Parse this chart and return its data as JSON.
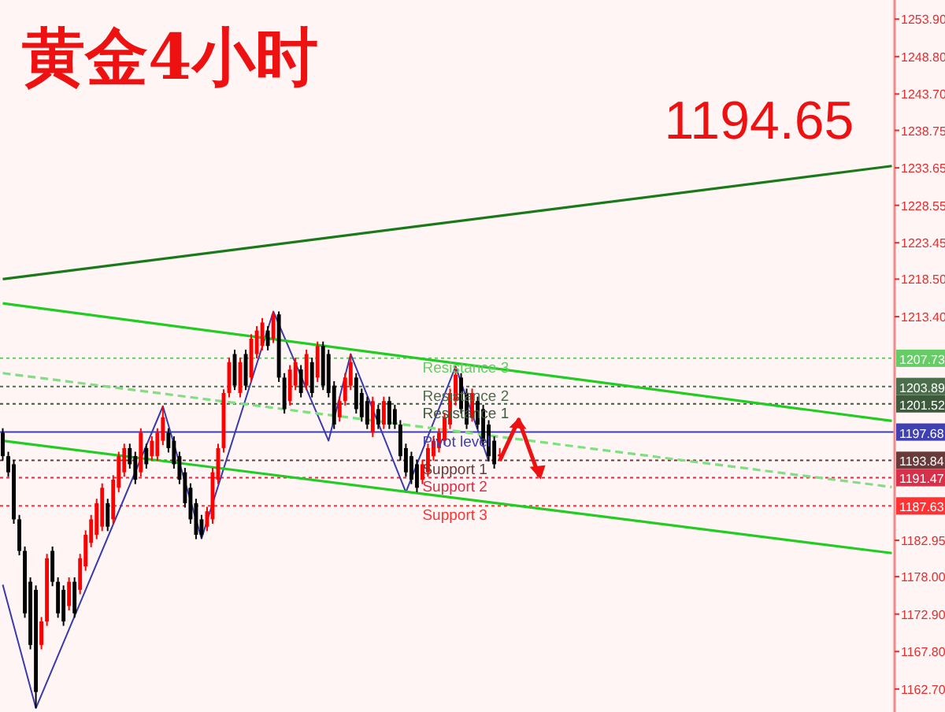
{
  "chart_data": {
    "type": "candlestick",
    "title": "黄金4小时",
    "annotations": [
      "1194.65"
    ],
    "colors": [
      "#000000",
      "#000000",
      "#000000",
      "#000000",
      "#000000",
      "#000000",
      "#000000",
      "#ff0000",
      "#ff0000",
      "#000000",
      "#000000",
      "#000000",
      "#ff0000",
      "#000000",
      "#ff0000",
      "#ff0000",
      "#ff0000",
      "#ff0000",
      "#ff0000",
      "#000000",
      "#ff0000",
      "#ff0000",
      "#ff0000",
      "#000000",
      "#000000",
      "#ff0000",
      "#000000",
      "#ff0000",
      "#ff0000",
      "#ff0000",
      "#000000",
      "#000000",
      "#000000",
      "#000000",
      "#000000",
      "#000000",
      "#000000",
      "#ff0000",
      "#ff0000",
      "#ff0000",
      "#ff0000",
      "#ff0000",
      "#000000",
      "#ff0000",
      "#000000",
      "#ff0000",
      "#ff0000",
      "#ff0000",
      "#000000",
      "#ff0000",
      "#000000",
      "#000000",
      "#ff0000",
      "#ff0000",
      "#000000",
      "#ff0000",
      "#000000",
      "#ff0000",
      "#000000",
      "#000000",
      "#000000",
      "#ff0000",
      "#ff0000",
      "#ff0000",
      "#000000",
      "#000000",
      "#000000",
      "#ff0000",
      "#000000",
      "#ff0000",
      "#000000",
      "#000000",
      "#000000",
      "#000000",
      "#000000",
      "#000000",
      "#ff0000",
      "#ff0000",
      "#ff0000",
      "#ff0000",
      "#ff0000",
      "#ff0000",
      "#ff0000",
      "#000000",
      "#000000",
      "#ff0000",
      "#000000",
      "#000000",
      "#000000",
      "#000000",
      "#ff0000",
      null,
      null,
      null,
      null,
      null,
      null,
      null,
      null,
      null,
      null,
      null,
      null,
      null,
      null,
      null,
      null,
      null,
      null,
      null,
      null,
      null,
      null,
      null,
      null,
      null,
      null,
      null,
      null,
      null,
      null,
      null,
      null,
      null,
      null,
      null,
      null,
      null,
      null,
      null,
      null,
      null,
      null,
      null,
      null,
      null,
      null,
      null,
      null,
      null,
      null,
      null,
      null,
      null,
      null,
      null,
      null,
      null,
      null,
      null,
      null,
      null,
      null,
      null,
      null,
      null,
      null,
      null,
      null,
      null,
      null,
      null
    ],
    "categories": [
      null,
      null,
      null,
      null,
      null,
      null,
      null,
      null,
      null,
      null,
      null,
      null,
      null,
      null,
      null,
      null,
      null,
      null,
      null,
      null,
      null,
      null,
      null,
      null,
      null,
      null,
      null,
      null,
      null,
      null,
      null,
      null,
      null,
      null,
      null,
      null,
      null,
      null,
      null,
      null,
      null,
      null,
      null,
      null,
      null,
      null,
      null,
      null,
      null,
      null,
      null,
      null,
      null,
      null,
      null,
      null,
      null,
      null,
      null,
      null,
      null,
      null,
      null,
      null,
      null,
      null,
      null,
      null,
      null,
      null,
      null,
      null,
      null,
      null,
      null,
      null,
      null,
      null,
      null,
      null,
      null,
      null,
      null,
      null,
      null,
      null,
      null,
      null,
      null,
      null,
      null,
      null,
      null,
      null,
      null,
      null,
      null,
      null,
      null,
      null,
      null,
      null,
      null,
      null,
      null,
      null,
      null,
      null,
      null,
      null,
      null,
      null,
      null,
      null,
      null,
      null,
      null,
      null,
      null,
      null,
      null,
      null,
      null,
      null,
      null,
      null,
      null,
      null,
      null,
      null,
      null,
      null,
      null,
      null,
      null,
      null,
      null,
      null,
      null,
      null,
      null,
      null,
      null,
      null,
      null,
      null,
      null,
      null,
      null,
      null,
      null,
      null,
      null,
      null,
      null,
      null,
      null,
      null,
      null,
      null,
      null,
      null
    ],
    "ohlc": [
      [
        1197.6,
        1198.2,
        1193.8,
        1194.4
      ],
      [
        1194.4,
        1195.0,
        1191.6,
        1192.2
      ],
      [
        1193.3,
        1193.9,
        1185.2,
        1185.8
      ],
      [
        1185.8,
        1186.4,
        1180.9,
        1181.5
      ],
      [
        1181.5,
        1182.1,
        1172.4,
        1173.0
      ],
      [
        1177.3,
        1177.9,
        1168.1,
        1168.7
      ],
      [
        1176.2,
        1176.8,
        1160.1,
        1162.3
      ],
      [
        1168.7,
        1172.5,
        1168.1,
        1171.9
      ],
      [
        1171.9,
        1181.1,
        1171.3,
        1180.5
      ],
      [
        1181.5,
        1182.1,
        1176.7,
        1177.3
      ],
      [
        1177.3,
        1177.9,
        1172.4,
        1173.0
      ],
      [
        1176.2,
        1176.8,
        1171.3,
        1171.9
      ],
      [
        1174.0,
        1177.9,
        1173.4,
        1177.3
      ],
      [
        1177.3,
        1177.9,
        1172.4,
        1173.0
      ],
      [
        1176.2,
        1181.1,
        1175.6,
        1180.5
      ],
      [
        1179.4,
        1184.3,
        1178.8,
        1183.7
      ],
      [
        1182.6,
        1186.4,
        1182.0,
        1185.8
      ],
      [
        1183.7,
        1188.6,
        1183.1,
        1188.0
      ],
      [
        1184.8,
        1190.7,
        1184.2,
        1190.1
      ],
      [
        1188.0,
        1188.6,
        1184.2,
        1184.8
      ],
      [
        1185.8,
        1191.8,
        1185.2,
        1191.2
      ],
      [
        1190.1,
        1195.0,
        1189.5,
        1194.4
      ],
      [
        1192.2,
        1196.1,
        1191.6,
        1195.5
      ],
      [
        1195.5,
        1196.1,
        1192.7,
        1193.3
      ],
      [
        1194.4,
        1195.0,
        1190.6,
        1191.2
      ],
      [
        1192.2,
        1198.2,
        1191.6,
        1197.6
      ],
      [
        1195.5,
        1196.1,
        1192.7,
        1193.3
      ],
      [
        1194.4,
        1197.1,
        1193.8,
        1196.5
      ],
      [
        1194.4,
        1198.2,
        1193.8,
        1197.6
      ],
      [
        1196.5,
        1201.2,
        1195.9,
        1199.7
      ],
      [
        1197.6,
        1198.2,
        1194.9,
        1195.5
      ],
      [
        1196.5,
        1197.1,
        1192.7,
        1193.3
      ],
      [
        1194.4,
        1195.0,
        1190.6,
        1191.2
      ],
      [
        1192.2,
        1192.8,
        1187.4,
        1188.0
      ],
      [
        1190.1,
        1190.7,
        1185.2,
        1185.8
      ],
      [
        1188.0,
        1188.6,
        1183.1,
        1183.7
      ],
      [
        1185.8,
        1186.4,
        1183.2,
        1183.7
      ],
      [
        1184.8,
        1187.5,
        1184.2,
        1186.9
      ],
      [
        1185.8,
        1192.8,
        1185.2,
        1192.2
      ],
      [
        1191.2,
        1196.1,
        1190.6,
        1195.5
      ],
      [
        1195.5,
        1203.5,
        1194.9,
        1203.0
      ],
      [
        1203.0,
        1207.8,
        1202.4,
        1207.2
      ],
      [
        1208.3,
        1208.9,
        1203.4,
        1204.0
      ],
      [
        1203.0,
        1207.8,
        1202.4,
        1207.2
      ],
      [
        1208.3,
        1208.9,
        1203.4,
        1204.0
      ],
      [
        1205.1,
        1211.0,
        1204.5,
        1210.4
      ],
      [
        1208.3,
        1212.1,
        1207.7,
        1211.5
      ],
      [
        1209.4,
        1213.2,
        1208.8,
        1212.6
      ],
      [
        1211.5,
        1212.1,
        1208.8,
        1209.4
      ],
      [
        1210.4,
        1214.1,
        1209.8,
        1213.7
      ],
      [
        1213.7,
        1214.1,
        1204.5,
        1205.1
      ],
      [
        1205.1,
        1205.7,
        1200.2,
        1200.8
      ],
      [
        1201.9,
        1206.8,
        1201.3,
        1206.2
      ],
      [
        1204.0,
        1207.8,
        1203.4,
        1207.2
      ],
      [
        1206.2,
        1206.8,
        1202.4,
        1203.0
      ],
      [
        1204.0,
        1208.9,
        1203.4,
        1208.3
      ],
      [
        1207.2,
        1207.8,
        1202.4,
        1203.0
      ],
      [
        1205.1,
        1210.0,
        1204.5,
        1209.4
      ],
      [
        1209.4,
        1210.0,
        1203.4,
        1204.0
      ],
      [
        1208.3,
        1208.9,
        1202.4,
        1203.0
      ],
      [
        1204.0,
        1204.6,
        1198.1,
        1198.7
      ],
      [
        1199.7,
        1202.5,
        1199.1,
        1201.9
      ],
      [
        1201.9,
        1205.7,
        1201.3,
        1205.1
      ],
      [
        1204.0,
        1208.3,
        1203.4,
        1207.2
      ],
      [
        1205.1,
        1205.7,
        1200.2,
        1200.8
      ],
      [
        1203.0,
        1203.6,
        1199.1,
        1199.7
      ],
      [
        1201.9,
        1202.5,
        1198.1,
        1198.7
      ],
      [
        1197.6,
        1202.5,
        1197.0,
        1201.9
      ],
      [
        1200.8,
        1201.4,
        1198.1,
        1198.7
      ],
      [
        1198.7,
        1202.5,
        1198.1,
        1201.9
      ],
      [
        1201.9,
        1202.5,
        1198.1,
        1198.7
      ],
      [
        1200.8,
        1201.4,
        1198.1,
        1198.7
      ],
      [
        1198.7,
        1199.3,
        1193.8,
        1194.4
      ],
      [
        1195.5,
        1196.1,
        1191.6,
        1192.2
      ],
      [
        1194.4,
        1195.0,
        1190.6,
        1191.2
      ],
      [
        1193.3,
        1193.9,
        1189.5,
        1190.1
      ],
      [
        1191.2,
        1193.9,
        1190.6,
        1193.3
      ],
      [
        1192.2,
        1196.1,
        1191.6,
        1195.5
      ],
      [
        1194.4,
        1197.1,
        1193.8,
        1196.5
      ],
      [
        1195.5,
        1198.2,
        1194.9,
        1197.6
      ],
      [
        1196.5,
        1200.3,
        1195.9,
        1199.7
      ],
      [
        1198.7,
        1203.6,
        1198.1,
        1203.0
      ],
      [
        1201.9,
        1206.6,
        1201.3,
        1205.5
      ],
      [
        1205.1,
        1205.7,
        1200.2,
        1200.8
      ],
      [
        1203.0,
        1203.6,
        1198.1,
        1198.7
      ],
      [
        1199.7,
        1203.6,
        1199.1,
        1203.0
      ],
      [
        1201.9,
        1202.5,
        1198.1,
        1198.7
      ],
      [
        1200.8,
        1201.4,
        1195.9,
        1196.5
      ],
      [
        1198.7,
        1199.3,
        1193.7,
        1194.4
      ],
      [
        1196.5,
        1197.1,
        1192.7,
        1193.3
      ],
      [
        1194.4,
        1195.5,
        1193.8,
        1194.65
      ],
      null,
      null,
      null,
      null,
      null,
      null,
      null,
      null,
      null,
      null,
      null,
      null,
      null,
      null,
      null,
      null,
      null,
      null,
      null,
      null,
      null,
      null,
      null,
      null,
      null,
      null,
      null,
      null,
      null,
      null,
      null,
      null,
      null,
      null,
      null,
      null,
      null,
      null,
      null,
      null,
      null,
      null,
      null,
      null,
      null,
      null,
      null,
      null,
      null,
      null,
      null,
      null,
      null,
      null,
      null,
      null,
      null,
      null,
      null,
      null,
      null,
      null,
      null,
      null,
      null,
      null,
      null,
      null,
      null,
      null,
      null
    ],
    "series": [
      {
        "type": "line",
        "color": "#3a3aaa",
        "values": [
          1176.9,
          null,
          null,
          null,
          null,
          null,
          1160.1,
          null,
          null,
          null,
          null,
          null,
          null,
          null,
          null,
          null,
          null,
          null,
          null,
          null,
          null,
          null,
          null,
          null,
          null,
          null,
          null,
          null,
          null,
          1201.2,
          null,
          null,
          null,
          null,
          null,
          null,
          1183.2,
          null,
          null,
          null,
          null,
          null,
          null,
          null,
          null,
          null,
          null,
          null,
          null,
          1214.1,
          null,
          null,
          null,
          null,
          null,
          null,
          null,
          null,
          null,
          1196.5,
          null,
          null,
          null,
          1208.3,
          null,
          null,
          null,
          null,
          null,
          null,
          null,
          null,
          null,
          1189.5,
          null,
          null,
          null,
          null,
          null,
          null,
          null,
          null,
          1206.6,
          null,
          null,
          null,
          null,
          null,
          1193.7,
          null,
          null,
          null,
          null,
          null,
          null,
          null,
          null,
          null,
          null,
          null,
          null,
          null,
          null,
          null,
          null,
          null,
          null,
          null,
          null,
          null,
          null,
          null,
          null,
          null,
          null,
          null,
          null,
          null,
          null,
          null,
          null,
          null,
          null,
          null,
          null,
          null,
          null,
          null,
          null,
          null,
          null,
          null,
          null,
          null,
          null,
          null,
          null,
          null,
          null,
          null,
          null,
          null,
          null,
          null,
          null,
          null,
          null,
          null,
          null,
          null,
          null,
          null,
          null,
          null,
          null,
          null,
          null,
          null,
          null,
          null,
          null,
          null
        ]
      },
      {
        "type": "line",
        "color": "#1a7a1a",
        "values": [
          1218.5,
          null,
          null,
          null,
          null,
          null,
          null,
          null,
          null,
          null,
          null,
          null,
          null,
          null,
          null,
          null,
          null,
          null,
          null,
          null,
          null,
          null,
          null,
          null,
          null,
          null,
          null,
          null,
          null,
          null,
          null,
          null,
          null,
          null,
          null,
          null,
          null,
          null,
          null,
          null,
          null,
          null,
          null,
          null,
          null,
          null,
          null,
          null,
          null,
          null,
          null,
          null,
          null,
          null,
          null,
          null,
          null,
          null,
          null,
          null,
          null,
          null,
          null,
          null,
          null,
          null,
          null,
          null,
          null,
          null,
          null,
          null,
          null,
          null,
          null,
          null,
          null,
          null,
          null,
          null,
          null,
          null,
          null,
          null,
          null,
          null,
          null,
          null,
          null,
          null,
          null,
          null,
          null,
          null,
          null,
          null,
          null,
          null,
          null,
          null,
          null,
          null,
          null,
          null,
          null,
          null,
          null,
          null,
          null,
          null,
          null,
          null,
          null,
          null,
          null,
          null,
          null,
          null,
          null,
          null,
          null,
          null,
          null,
          null,
          null,
          null,
          null,
          null,
          null,
          null,
          null,
          null,
          null,
          null,
          null,
          null,
          null,
          null,
          null,
          null,
          null,
          null,
          null,
          null,
          null,
          null,
          null,
          null,
          null,
          null,
          null,
          null,
          null,
          null,
          null,
          null,
          null,
          null,
          null,
          null,
          null,
          1233.9
        ]
      },
      {
        "type": "line",
        "color": "#22cc22",
        "values": [
          1215.2,
          null,
          null,
          null,
          null,
          null,
          null,
          null,
          null,
          null,
          null,
          null,
          null,
          null,
          null,
          null,
          null,
          null,
          null,
          null,
          null,
          null,
          null,
          null,
          null,
          null,
          null,
          null,
          null,
          null,
          null,
          null,
          null,
          null,
          null,
          null,
          null,
          null,
          null,
          null,
          null,
          null,
          null,
          null,
          null,
          null,
          null,
          null,
          null,
          null,
          null,
          null,
          null,
          null,
          null,
          null,
          null,
          null,
          null,
          null,
          null,
          null,
          null,
          null,
          null,
          null,
          null,
          null,
          null,
          null,
          null,
          null,
          null,
          null,
          null,
          null,
          null,
          null,
          null,
          null,
          null,
          null,
          null,
          null,
          null,
          null,
          null,
          null,
          null,
          null,
          null,
          null,
          null,
          null,
          null,
          null,
          null,
          null,
          null,
          null,
          null,
          null,
          null,
          null,
          null,
          null,
          null,
          null,
          null,
          null,
          null,
          null,
          null,
          null,
          null,
          null,
          null,
          null,
          null,
          null,
          null,
          null,
          null,
          null,
          null,
          null,
          null,
          null,
          null,
          null,
          null,
          null,
          null,
          null,
          null,
          null,
          null,
          null,
          null,
          null,
          null,
          null,
          null,
          null,
          null,
          null,
          null,
          null,
          null,
          null,
          null,
          null,
          null,
          null,
          null,
          null,
          null,
          null,
          null,
          null,
          null,
          1199.2
        ]
      },
      {
        "type": "line",
        "color": "#7ee07e",
        "line_style": "dashed",
        "values": [
          1205.7,
          null,
          null,
          null,
          null,
          null,
          null,
          null,
          null,
          null,
          null,
          null,
          null,
          null,
          null,
          null,
          null,
          null,
          null,
          null,
          null,
          null,
          null,
          null,
          null,
          null,
          null,
          null,
          null,
          null,
          null,
          null,
          null,
          null,
          null,
          null,
          null,
          null,
          null,
          null,
          null,
          null,
          null,
          null,
          null,
          null,
          null,
          null,
          null,
          null,
          null,
          null,
          null,
          null,
          null,
          null,
          null,
          null,
          null,
          null,
          null,
          null,
          null,
          null,
          null,
          null,
          null,
          null,
          null,
          null,
          null,
          null,
          null,
          null,
          null,
          null,
          null,
          null,
          null,
          null,
          null,
          null,
          null,
          null,
          null,
          null,
          null,
          null,
          null,
          null,
          null,
          null,
          null,
          null,
          null,
          null,
          null,
          null,
          null,
          null,
          null,
          null,
          null,
          null,
          null,
          null,
          null,
          null,
          null,
          null,
          null,
          null,
          null,
          null,
          null,
          null,
          null,
          null,
          null,
          null,
          null,
          null,
          null,
          null,
          null,
          null,
          null,
          null,
          null,
          null,
          null,
          null,
          null,
          null,
          null,
          null,
          null,
          null,
          null,
          null,
          null,
          null,
          null,
          null,
          null,
          null,
          null,
          null,
          null,
          null,
          null,
          null,
          null,
          null,
          null,
          null,
          null,
          null,
          null,
          null,
          null,
          1190.2
        ]
      },
      {
        "type": "line",
        "color": "#22cc22",
        "values": [
          1196.5,
          null,
          null,
          null,
          null,
          null,
          null,
          null,
          null,
          null,
          null,
          null,
          null,
          null,
          null,
          null,
          null,
          null,
          null,
          null,
          null,
          null,
          null,
          null,
          null,
          null,
          null,
          null,
          null,
          null,
          null,
          null,
          null,
          null,
          null,
          null,
          null,
          null,
          null,
          null,
          null,
          null,
          null,
          null,
          null,
          null,
          null,
          null,
          null,
          null,
          null,
          null,
          null,
          null,
          null,
          null,
          null,
          null,
          null,
          null,
          null,
          null,
          null,
          null,
          null,
          null,
          null,
          null,
          null,
          null,
          null,
          null,
          null,
          null,
          null,
          null,
          null,
          null,
          null,
          null,
          null,
          null,
          null,
          null,
          null,
          null,
          null,
          null,
          null,
          null,
          null,
          null,
          null,
          null,
          null,
          null,
          null,
          null,
          null,
          null,
          null,
          null,
          null,
          null,
          null,
          null,
          null,
          null,
          null,
          null,
          null,
          null,
          null,
          null,
          null,
          null,
          null,
          null,
          null,
          null,
          null,
          null,
          null,
          null,
          null,
          null,
          null,
          null,
          null,
          null,
          null,
          null,
          null,
          null,
          null,
          null,
          null,
          null,
          null,
          null,
          null,
          null,
          null,
          null,
          null,
          null,
          null,
          null,
          null,
          null,
          null,
          null,
          null,
          null,
          null,
          null,
          null,
          null,
          null,
          null,
          null,
          1181.2
        ]
      }
    ],
    "ref_lines": [
      {
        "axis": "y",
        "value": 1207.73,
        "label": "Resistance 3",
        "color": "#66cc66",
        "line_style": "dotted"
      },
      {
        "axis": "y",
        "value": 1203.89,
        "label": "Resistance 2",
        "color": "#4d6e4d",
        "line_style": "dotted"
      },
      {
        "axis": "y",
        "value": 1201.52,
        "label": "Resistance 1",
        "color": "#3d5a3d",
        "line_style": "dotted"
      },
      {
        "axis": "y",
        "value": 1197.68,
        "label": "Pivot level",
        "color": "#4040b0",
        "line_style": "solid"
      },
      {
        "axis": "y",
        "value": 1193.84,
        "label": "Support 1",
        "color": "#6a3a3a",
        "line_style": "dotted"
      },
      {
        "axis": "y",
        "value": 1191.47,
        "label": "Support 2",
        "color": "#d8304a",
        "line_style": "dotted"
      },
      {
        "axis": "y",
        "value": 1187.63,
        "label": "Support 3",
        "color": "#ff3333",
        "line_style": "dotted"
      }
    ],
    "ylim": [
      1160.0,
      1256.5
    ],
    "yticks": [
      {
        "value": 1253.9,
        "label": "1253.90"
      },
      {
        "value": 1248.8,
        "label": "1248.80"
      },
      {
        "value": 1243.7,
        "label": "1243.70"
      },
      {
        "value": 1238.75,
        "label": "1238.75"
      },
      {
        "value": 1233.65,
        "label": "1233.65"
      },
      {
        "value": 1228.55,
        "label": "1228.55"
      },
      {
        "value": 1223.45,
        "label": "1223.45"
      },
      {
        "value": 1218.5,
        "label": "1218.50"
      },
      {
        "value": 1213.4,
        "label": "1213.40"
      },
      1207.73,
      1203.89,
      1201.52,
      1197.68,
      1193.84,
      1191.47,
      1187.63,
      {
        "value": 1182.95,
        "label": "1182.95"
      },
      {
        "value": 1178.0,
        "label": "1178.00"
      },
      {
        "value": 1172.9,
        "label": "1172.90"
      },
      {
        "value": 1167.8,
        "label": "1167.80"
      },
      {
        "value": 1162.7,
        "label": "1162.70"
      }
    ],
    "tick_labels": "y"
  }
}
